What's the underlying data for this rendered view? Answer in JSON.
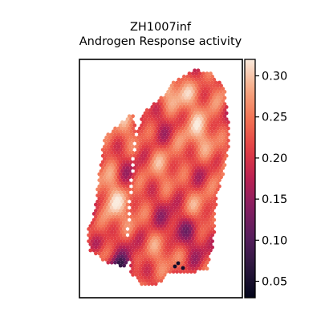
{
  "chart_data": {
    "type": "heatmap",
    "title": "ZH1007inf",
    "subtitle": "Androgen Response activity",
    "xlabel": "",
    "ylabel": "",
    "colormap": "rocket",
    "colorbar": {
      "range": [
        0.03,
        0.32
      ],
      "ticks": [
        0.05,
        0.1,
        0.15,
        0.2,
        0.25,
        0.3
      ],
      "tick_labels": [
        "0.05",
        "0.10",
        "0.15",
        "0.20",
        "0.25",
        "0.30"
      ]
    },
    "grid": false,
    "legend": "colorbar-right",
    "value_summary": {
      "typical": 0.22,
      "maximum": 0.32,
      "minimum": 0.04
    }
  }
}
